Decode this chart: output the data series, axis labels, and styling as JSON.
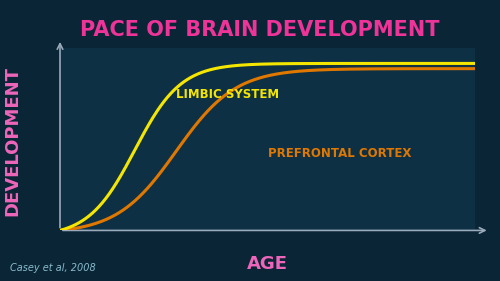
{
  "title": "PACE OF BRAIN DEVELOPMENT",
  "title_color": "#ee3399",
  "title_fontsize": 15,
  "xlabel": "AGE",
  "ylabel": "DEVELOPMENT",
  "axis_label_color": "#ee66bb",
  "axis_label_fontsize": 13,
  "background_color": "#0a2535",
  "plot_bg_color": "#0d3045",
  "grid_color": "#1b5068",
  "limbic_label": "LIMBIC SYSTEM",
  "limbic_color": "#f5e600",
  "prefrontal_label": "PREFRONTAL CORTEX",
  "prefrontal_color": "#e07800",
  "citation": "Casey et al, 2008",
  "citation_color": "#88bbcc",
  "citation_fontsize": 7,
  "line_width": 2.2,
  "arrow_color": "#99aabb",
  "xlim": [
    0,
    10
  ],
  "ylim": [
    0,
    1.05
  ]
}
